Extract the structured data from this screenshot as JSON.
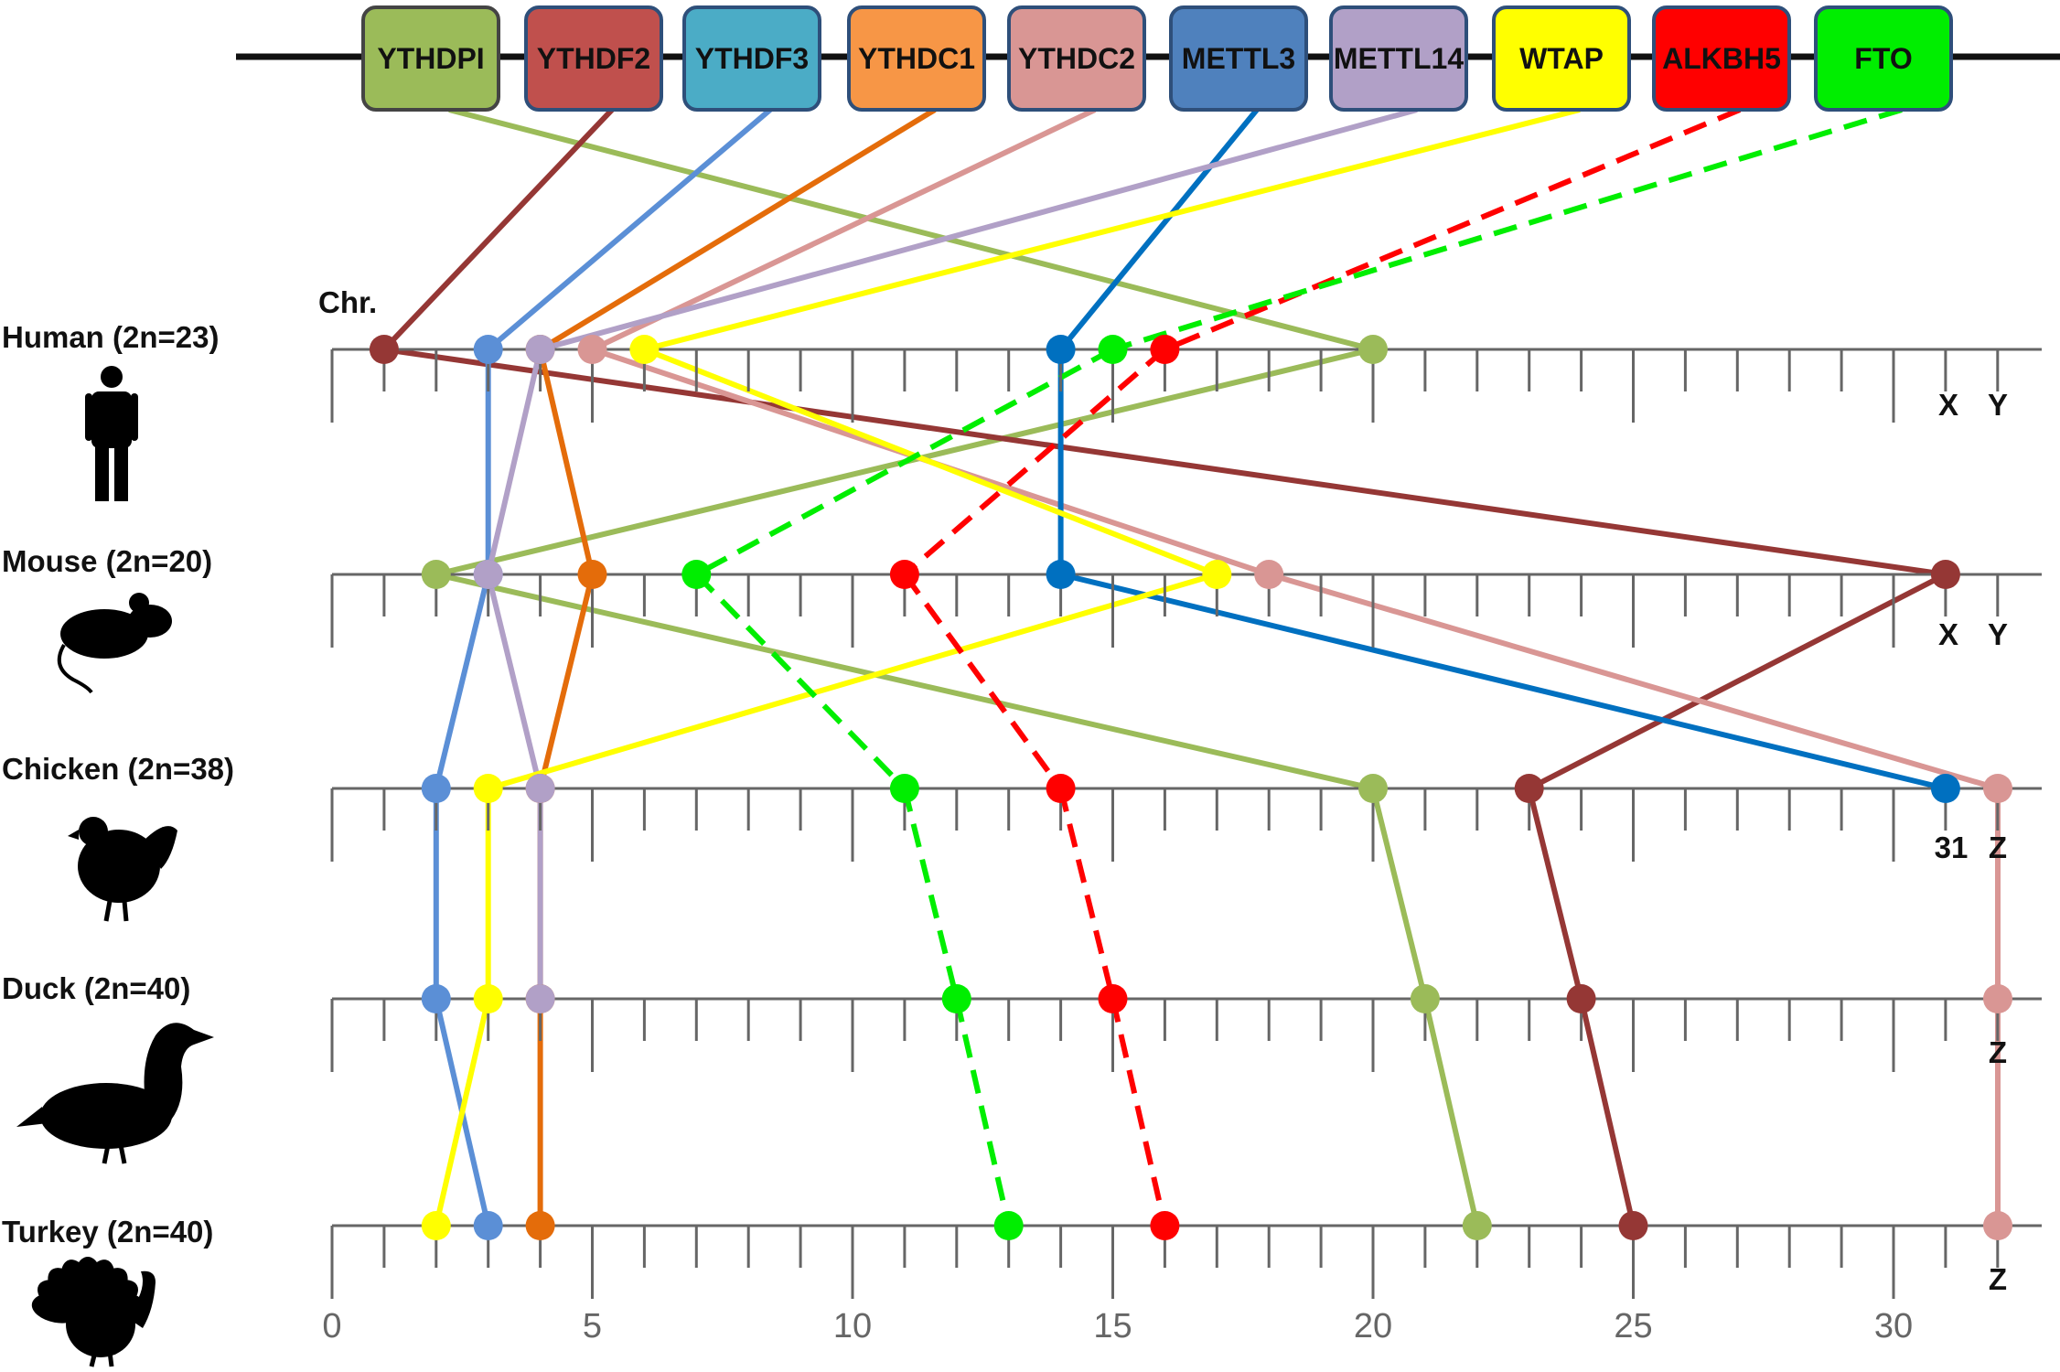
{
  "chr_label": "Chr.",
  "axis_ticks": [
    "0",
    "5",
    "10",
    "15",
    "20",
    "25",
    "30"
  ],
  "genes": [
    {
      "name": "YTHDPI",
      "color": "#9bbb59",
      "line": "#9bbb59",
      "dashed": false
    },
    {
      "name": "YTHDF2",
      "color": "#c0504d",
      "line": "#953735",
      "dashed": false
    },
    {
      "name": "YTHDF3",
      "color": "#4bacc6",
      "line": "#5b8fd6",
      "dashed": false
    },
    {
      "name": "YTHDC1",
      "color": "#f79646",
      "line": "#e46c0a",
      "dashed": false
    },
    {
      "name": "YTHDC2",
      "color": "#d99694",
      "line": "#d99694",
      "dashed": false
    },
    {
      "name": "METTL3",
      "color": "#4f81bd",
      "line": "#0070c0",
      "dashed": false
    },
    {
      "name": "METTL14",
      "color": "#b1a0c7",
      "line": "#b1a0c7",
      "dashed": false
    },
    {
      "name": "WTAP",
      "color": "#ffff00",
      "line": "#ffff00",
      "dashed": false
    },
    {
      "name": "ALKBH5",
      "color": "#ff0000",
      "line": "#ff0000",
      "dashed": true
    },
    {
      "name": "FTO",
      "color": "#00ee00",
      "line": "#00ee00",
      "dashed": true
    }
  ],
  "species": [
    {
      "label": "Human (2n=23)",
      "icon": "human-silhouette-icon",
      "sex_chr": [
        "X",
        "Y"
      ]
    },
    {
      "label": "Mouse (2n=20)",
      "icon": "mouse-silhouette-icon",
      "sex_chr": [
        "X",
        "Y"
      ]
    },
    {
      "label": "Chicken (2n=38)",
      "icon": "chicken-silhouette-icon",
      "sex_chr": [
        "31",
        "Z"
      ]
    },
    {
      "label": "Duck (2n=40)",
      "icon": "duck-silhouette-icon",
      "sex_chr": [
        "Z"
      ]
    },
    {
      "label": "Turkey (2n=40)",
      "icon": "turkey-silhouette-icon",
      "sex_chr": [
        "Z"
      ]
    }
  ],
  "chromosome_positions": {
    "YTHDPI": [
      20,
      2,
      20,
      21,
      22
    ],
    "YTHDF2": [
      1,
      31,
      23,
      24,
      25
    ],
    "YTHDF3": [
      3,
      3,
      2,
      2,
      3
    ],
    "YTHDC1": [
      4,
      5,
      4,
      4,
      4
    ],
    "YTHDC2": [
      5,
      18,
      "Z",
      "Z",
      "Z"
    ],
    "METTL3": [
      14,
      14,
      31
    ],
    "METTL14": [
      4,
      3,
      4,
      4
    ],
    "WTAP": [
      6,
      17,
      3,
      3,
      2
    ],
    "ALKBH5": [
      16,
      11,
      14,
      15,
      16
    ],
    "FTO": [
      15,
      7,
      11,
      12,
      13
    ]
  }
}
